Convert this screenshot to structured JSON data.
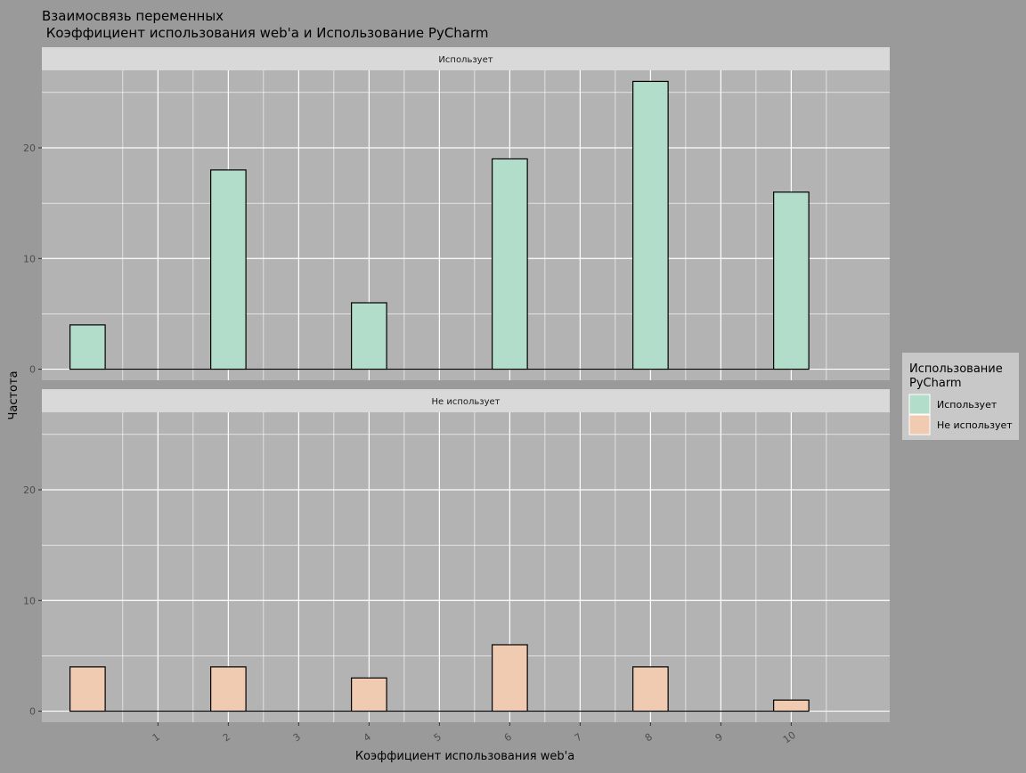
{
  "chart_data": {
    "type": "bar",
    "title_line1": "Взаимосвязь переменных",
    "title_line2": " Коэффициент использования web'a и Использование PyCharm",
    "xlabel": "Коэффициент использования web'a",
    "ylabel": "Частота",
    "x_ticks": [
      "1",
      "2",
      "3",
      "4",
      "5",
      "6",
      "7",
      "8",
      "9",
      "10"
    ],
    "y_ticks": [
      0,
      10,
      20
    ],
    "ylim": [
      -1,
      27
    ],
    "xlim": [
      -0.65,
      11.4
    ],
    "grid": true,
    "legend_position": "right",
    "legend": {
      "title_line1": "Использование",
      "title_line2": "PyCharm",
      "entries": [
        "Использует",
        "Не использует"
      ]
    },
    "facets": [
      {
        "label": "Использует",
        "color": "#b3ddcb",
        "bars": [
          {
            "x": 0,
            "value": 4
          },
          {
            "x": 2,
            "value": 18
          },
          {
            "x": 4,
            "value": 6
          },
          {
            "x": 6,
            "value": 19
          },
          {
            "x": 8,
            "value": 26
          },
          {
            "x": 10,
            "value": 16
          }
        ]
      },
      {
        "label": "Не использует",
        "color": "#f0cbb2",
        "bars": [
          {
            "x": 0,
            "value": 4
          },
          {
            "x": 2,
            "value": 4
          },
          {
            "x": 4,
            "value": 3
          },
          {
            "x": 6,
            "value": 6
          },
          {
            "x": 8,
            "value": 4
          },
          {
            "x": 10,
            "value": 1
          }
        ]
      }
    ]
  }
}
